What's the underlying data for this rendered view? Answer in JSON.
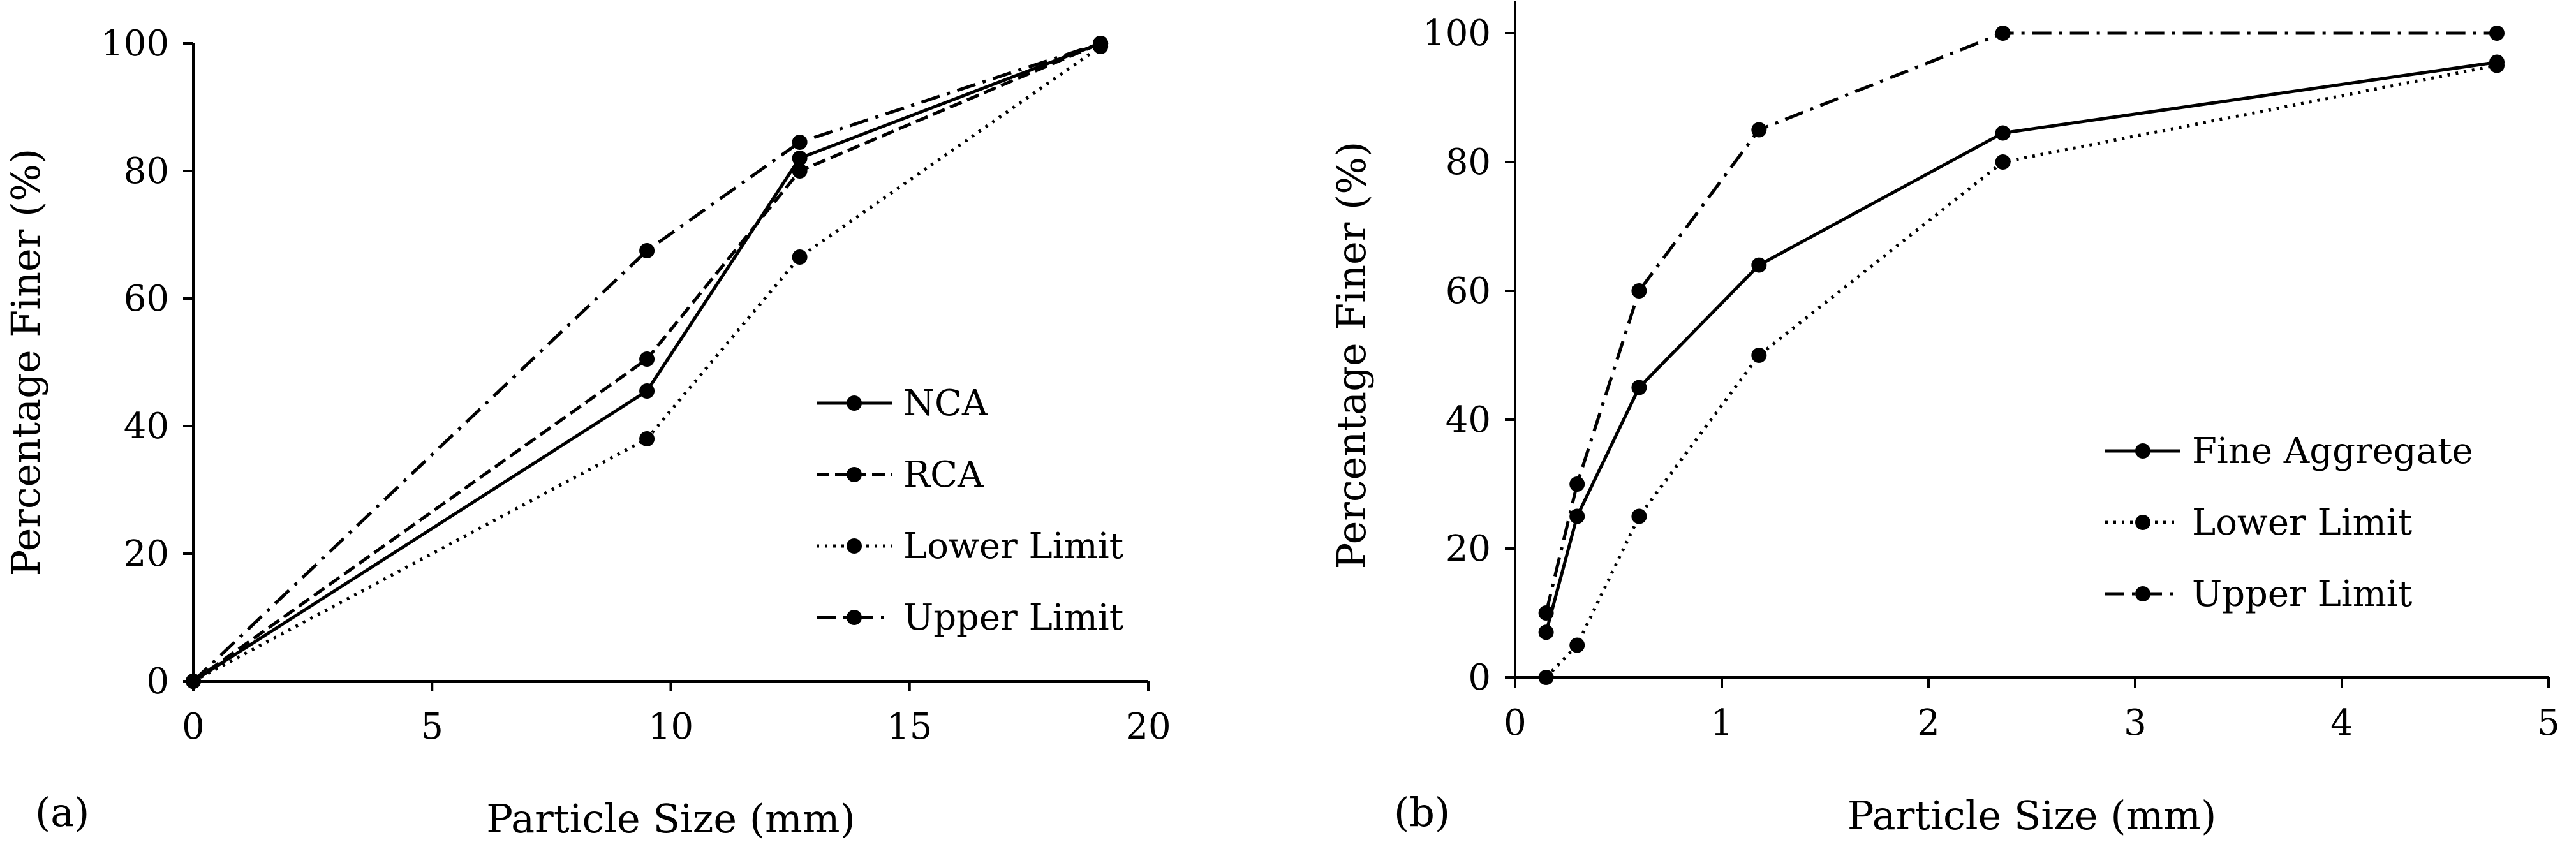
{
  "chart_data": [
    {
      "type": "line",
      "panel_label": "(a)",
      "xlabel": "Particle Size (mm)",
      "ylabel": "Percentage Finer (%)",
      "xlim": [
        0,
        20
      ],
      "ylim": [
        0,
        100
      ],
      "xticks": [
        0,
        5,
        10,
        15,
        20
      ],
      "yticks": [
        0,
        20,
        40,
        60,
        80,
        100
      ],
      "legend_position": "center-right",
      "series": [
        {
          "name": "NCA",
          "style": "solid",
          "x": [
            0,
            9.5,
            12.7,
            19.0
          ],
          "y": [
            0,
            45.5,
            82,
            100
          ]
        },
        {
          "name": "RCA",
          "style": "dashed",
          "x": [
            0,
            9.5,
            12.7,
            19.0
          ],
          "y": [
            0,
            50.5,
            80,
            100
          ]
        },
        {
          "name": "Lower Limit",
          "style": "dotted",
          "x": [
            0,
            9.5,
            12.7,
            19.0
          ],
          "y": [
            0,
            38,
            66.5,
            99.5
          ]
        },
        {
          "name": "Upper Limit",
          "style": "dashdot",
          "x": [
            0,
            9.5,
            12.7,
            19.0
          ],
          "y": [
            0,
            67.5,
            84.5,
            100
          ]
        }
      ]
    },
    {
      "type": "line",
      "panel_label": "(b)",
      "xlabel": "Particle Size (mm)",
      "ylabel": "Percentage Finer (%)",
      "xlim": [
        0,
        5
      ],
      "ylim": [
        0,
        100
      ],
      "xticks": [
        0,
        1,
        2,
        3,
        4,
        5
      ],
      "yticks": [
        0,
        20,
        40,
        60,
        80,
        100
      ],
      "legend_position": "center-right",
      "series": [
        {
          "name": "Fine Aggregate",
          "style": "solid",
          "x": [
            0.15,
            0.3,
            0.6,
            1.18,
            2.36,
            4.75
          ],
          "y": [
            7,
            25,
            45,
            64,
            84.5,
            95.5
          ]
        },
        {
          "name": "Lower Limit",
          "style": "dotted",
          "x": [
            0.15,
            0.3,
            0.6,
            1.18,
            2.36,
            4.75
          ],
          "y": [
            0,
            5,
            25,
            50,
            80,
            95
          ]
        },
        {
          "name": "Upper Limit",
          "style": "dashdot",
          "x": [
            0.15,
            0.3,
            0.6,
            1.18,
            2.36,
            4.75
          ],
          "y": [
            10,
            30,
            60,
            85,
            100,
            100
          ]
        }
      ]
    }
  ]
}
